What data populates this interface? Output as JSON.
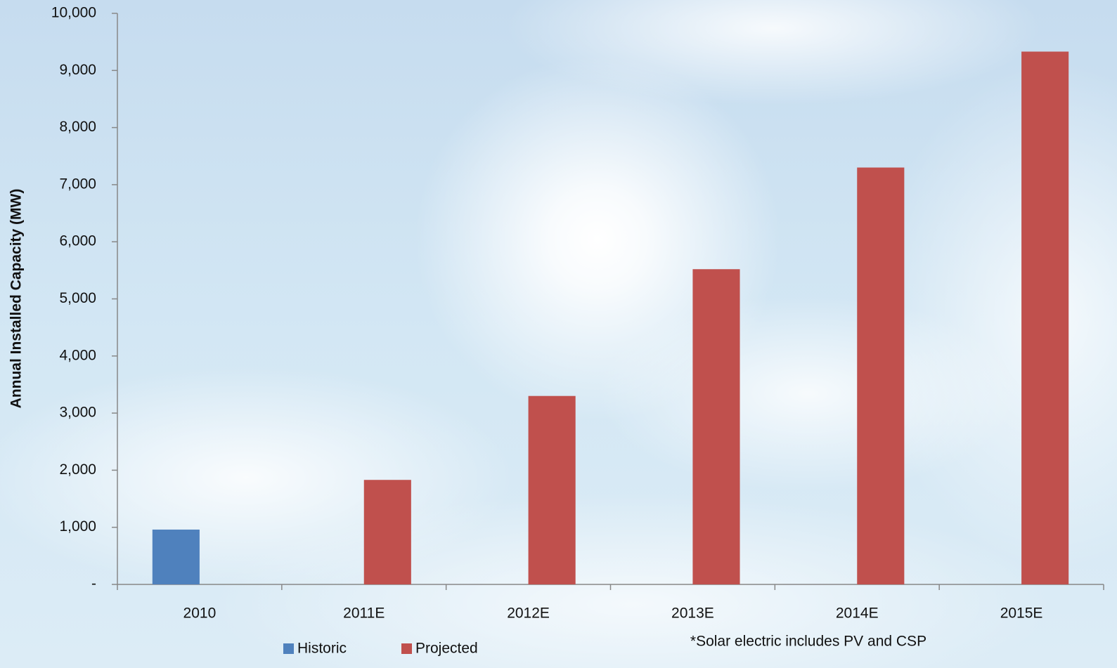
{
  "chart_data": {
    "type": "bar",
    "y_label": "Annual Installed Capacity (MW)",
    "annotation": "*Solar electric includes PV and CSP",
    "categories": [
      "2010",
      "2011E",
      "2012E",
      "2013E",
      "2014E",
      "2015E"
    ],
    "series": [
      {
        "name": "Historic",
        "color": "#4f81bd",
        "values": [
          960,
          null,
          null,
          null,
          null,
          null
        ]
      },
      {
        "name": "Projected",
        "color": "#c0504d",
        "values": [
          null,
          1830,
          3300,
          5520,
          7300,
          9330
        ]
      }
    ],
    "ylim": [
      0,
      10000
    ],
    "yticks": [
      {
        "value": 0,
        "label": "-"
      },
      {
        "value": 1000,
        "label": "1,000"
      },
      {
        "value": 2000,
        "label": "2,000"
      },
      {
        "value": 3000,
        "label": "3,000"
      },
      {
        "value": 4000,
        "label": "4,000"
      },
      {
        "value": 5000,
        "label": "5,000"
      },
      {
        "value": 6000,
        "label": "6,000"
      },
      {
        "value": 7000,
        "label": "7,000"
      },
      {
        "value": 8000,
        "label": "8,000"
      },
      {
        "value": 9000,
        "label": "9,000"
      },
      {
        "value": 10000,
        "label": "10,000"
      }
    ],
    "grid": false,
    "legend": "bottom"
  }
}
